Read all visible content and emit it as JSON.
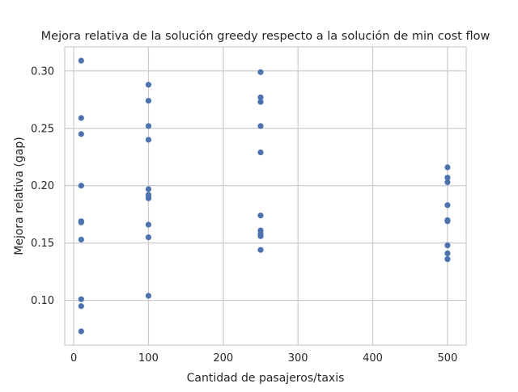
{
  "chart_data": {
    "type": "scatter",
    "title": "Mejora relativa de la solución greedy respecto a la solución de min cost flow",
    "xlabel": "Cantidad de pasajeros/taxis",
    "ylabel": "Mejora relativa (gap)",
    "xlim": [
      -12,
      525
    ],
    "ylim": [
      0.061,
      0.321
    ],
    "xticks": [
      0,
      100,
      200,
      300,
      400,
      500
    ],
    "xtick_labels": [
      "0",
      "100",
      "200",
      "300",
      "400",
      "500"
    ],
    "yticks": [
      0.1,
      0.15,
      0.2,
      0.25,
      0.3
    ],
    "ytick_labels": [
      "0.10",
      "0.15",
      "0.20",
      "0.25",
      "0.30"
    ],
    "grid": true,
    "marker_color": "#4c72b0",
    "gridline_color": "#cccccc",
    "series": [
      {
        "x": [
          10,
          10,
          10,
          10,
          10,
          10,
          10,
          10,
          10,
          10,
          100,
          100,
          100,
          100,
          100,
          100,
          100,
          100,
          100,
          100,
          100,
          250,
          250,
          250,
          250,
          250,
          250,
          250,
          250,
          250,
          250,
          500,
          500,
          500,
          500,
          500,
          500,
          500,
          500,
          500,
          500
        ],
        "y": [
          0.309,
          0.259,
          0.245,
          0.2,
          0.169,
          0.153,
          0.101,
          0.095,
          0.073,
          0.168,
          0.288,
          0.274,
          0.252,
          0.24,
          0.197,
          0.191,
          0.189,
          0.166,
          0.155,
          0.104,
          0.192,
          0.299,
          0.277,
          0.273,
          0.252,
          0.229,
          0.174,
          0.161,
          0.158,
          0.156,
          0.144,
          0.216,
          0.207,
          0.203,
          0.183,
          0.17,
          0.169,
          0.148,
          0.141,
          0.136,
          0.136
        ]
      }
    ]
  }
}
